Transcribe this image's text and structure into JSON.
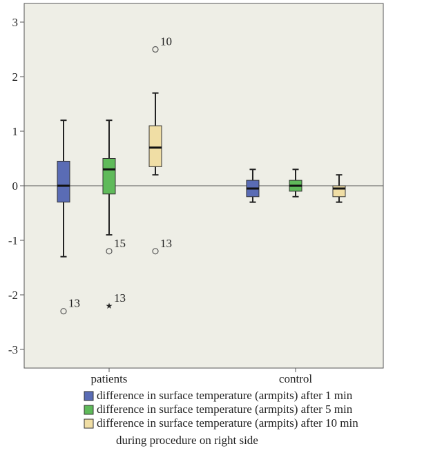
{
  "chart_data": {
    "type": "box",
    "title": "",
    "xlabel": "",
    "ylabel": "",
    "ylim": [
      -3.35,
      3.35
    ],
    "yticks": [
      3,
      2,
      1,
      0,
      -1,
      -2,
      -3
    ],
    "ytick_labels": [
      "3",
      "2",
      "1",
      "0",
      "-1",
      "-2",
      "-3"
    ],
    "categories": [
      "patients",
      "control"
    ],
    "reference_line": 0,
    "grid": false,
    "legend_position": "bottom",
    "background": "#eeeee6",
    "series": [
      {
        "name": "difference in surface temperature (armpits) after 1 min",
        "color": "#5a6cb5",
        "boxes": [
          {
            "category": "patients",
            "min": -1.3,
            "q1": -0.3,
            "median": 0.0,
            "q3": 0.45,
            "max": 1.2,
            "outliers": [
              {
                "value": -2.3,
                "label": "13",
                "symbol": "circle"
              }
            ]
          },
          {
            "category": "control",
            "min": -0.3,
            "q1": -0.2,
            "median": -0.05,
            "q3": 0.1,
            "max": 0.3,
            "outliers": []
          }
        ]
      },
      {
        "name": "difference in surface temperature (armpits) after 5 min",
        "color": "#5fba5a",
        "boxes": [
          {
            "category": "patients",
            "min": -0.9,
            "q1": -0.15,
            "median": 0.3,
            "q3": 0.5,
            "max": 1.2,
            "outliers": [
              {
                "value": -1.2,
                "label": "15",
                "symbol": "circle"
              },
              {
                "value": -2.2,
                "label": "13",
                "symbol": "star"
              }
            ]
          },
          {
            "category": "control",
            "min": -0.2,
            "q1": -0.1,
            "median": 0.0,
            "q3": 0.1,
            "max": 0.3,
            "outliers": []
          }
        ]
      },
      {
        "name": "difference in surface temperature (armpits) after 10 min",
        "color": "#f0dea5",
        "boxes": [
          {
            "category": "patients",
            "min": 0.2,
            "q1": 0.35,
            "median": 0.7,
            "q3": 1.1,
            "max": 1.7,
            "outliers": [
              {
                "value": 2.5,
                "label": "10",
                "symbol": "circle"
              },
              {
                "value": -1.2,
                "label": "13",
                "symbol": "circle"
              }
            ]
          },
          {
            "category": "control",
            "min": -0.3,
            "q1": -0.2,
            "median": -0.05,
            "q3": 0.0,
            "max": 0.2,
            "outliers": []
          }
        ]
      }
    ],
    "legend_caption": "during procedure on right side"
  }
}
